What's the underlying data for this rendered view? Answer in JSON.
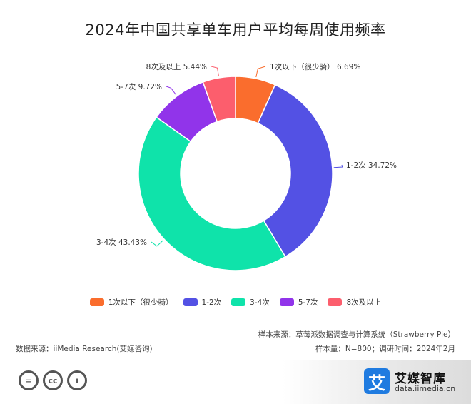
{
  "title": "2024年中国共享单车用户平均每周使用频率",
  "chart_data": {
    "type": "pie",
    "donut": true,
    "title": "2024年中国共享单车用户平均每周使用频率",
    "unit": "%",
    "slices": [
      {
        "label": "1次以下（很少骑）",
        "legend": "1次以下（很少骑）",
        "value": 6.69,
        "text": "1次以下（很少骑）  6.69%",
        "color": "#fa6d2d"
      },
      {
        "label": "1-2次",
        "legend": "1-2次",
        "value": 34.72,
        "text": "1-2次 34.72%",
        "color": "#5351e4"
      },
      {
        "label": "3-4次",
        "legend": "3-4次",
        "value": 43.43,
        "text": "3-4次 43.43%",
        "color": "#0fe3aa"
      },
      {
        "label": "5-7次",
        "legend": "5-7次",
        "value": 9.72,
        "text": "5-7次 9.72%",
        "color": "#9134ea"
      },
      {
        "label": "8次及以上",
        "legend": "8次及以上",
        "value": 5.44,
        "text": "8次及以上 5.44%",
        "color": "#fc5e6d"
      }
    ],
    "legend_position": "bottom"
  },
  "notes": {
    "sample_source": "样本来源：草莓派数据调查与计算系统（Strawberry Pie）",
    "data_source": "数据来源：iiMedia Research(艾媒咨询)",
    "sample_size": "样本量：N=800；调研时间：2024年2月"
  },
  "brand": {
    "logo_char": "艾",
    "name": "艾媒智库",
    "url": "data.iimedia.cn"
  },
  "license_icons": [
    "=",
    "cc",
    "i"
  ]
}
